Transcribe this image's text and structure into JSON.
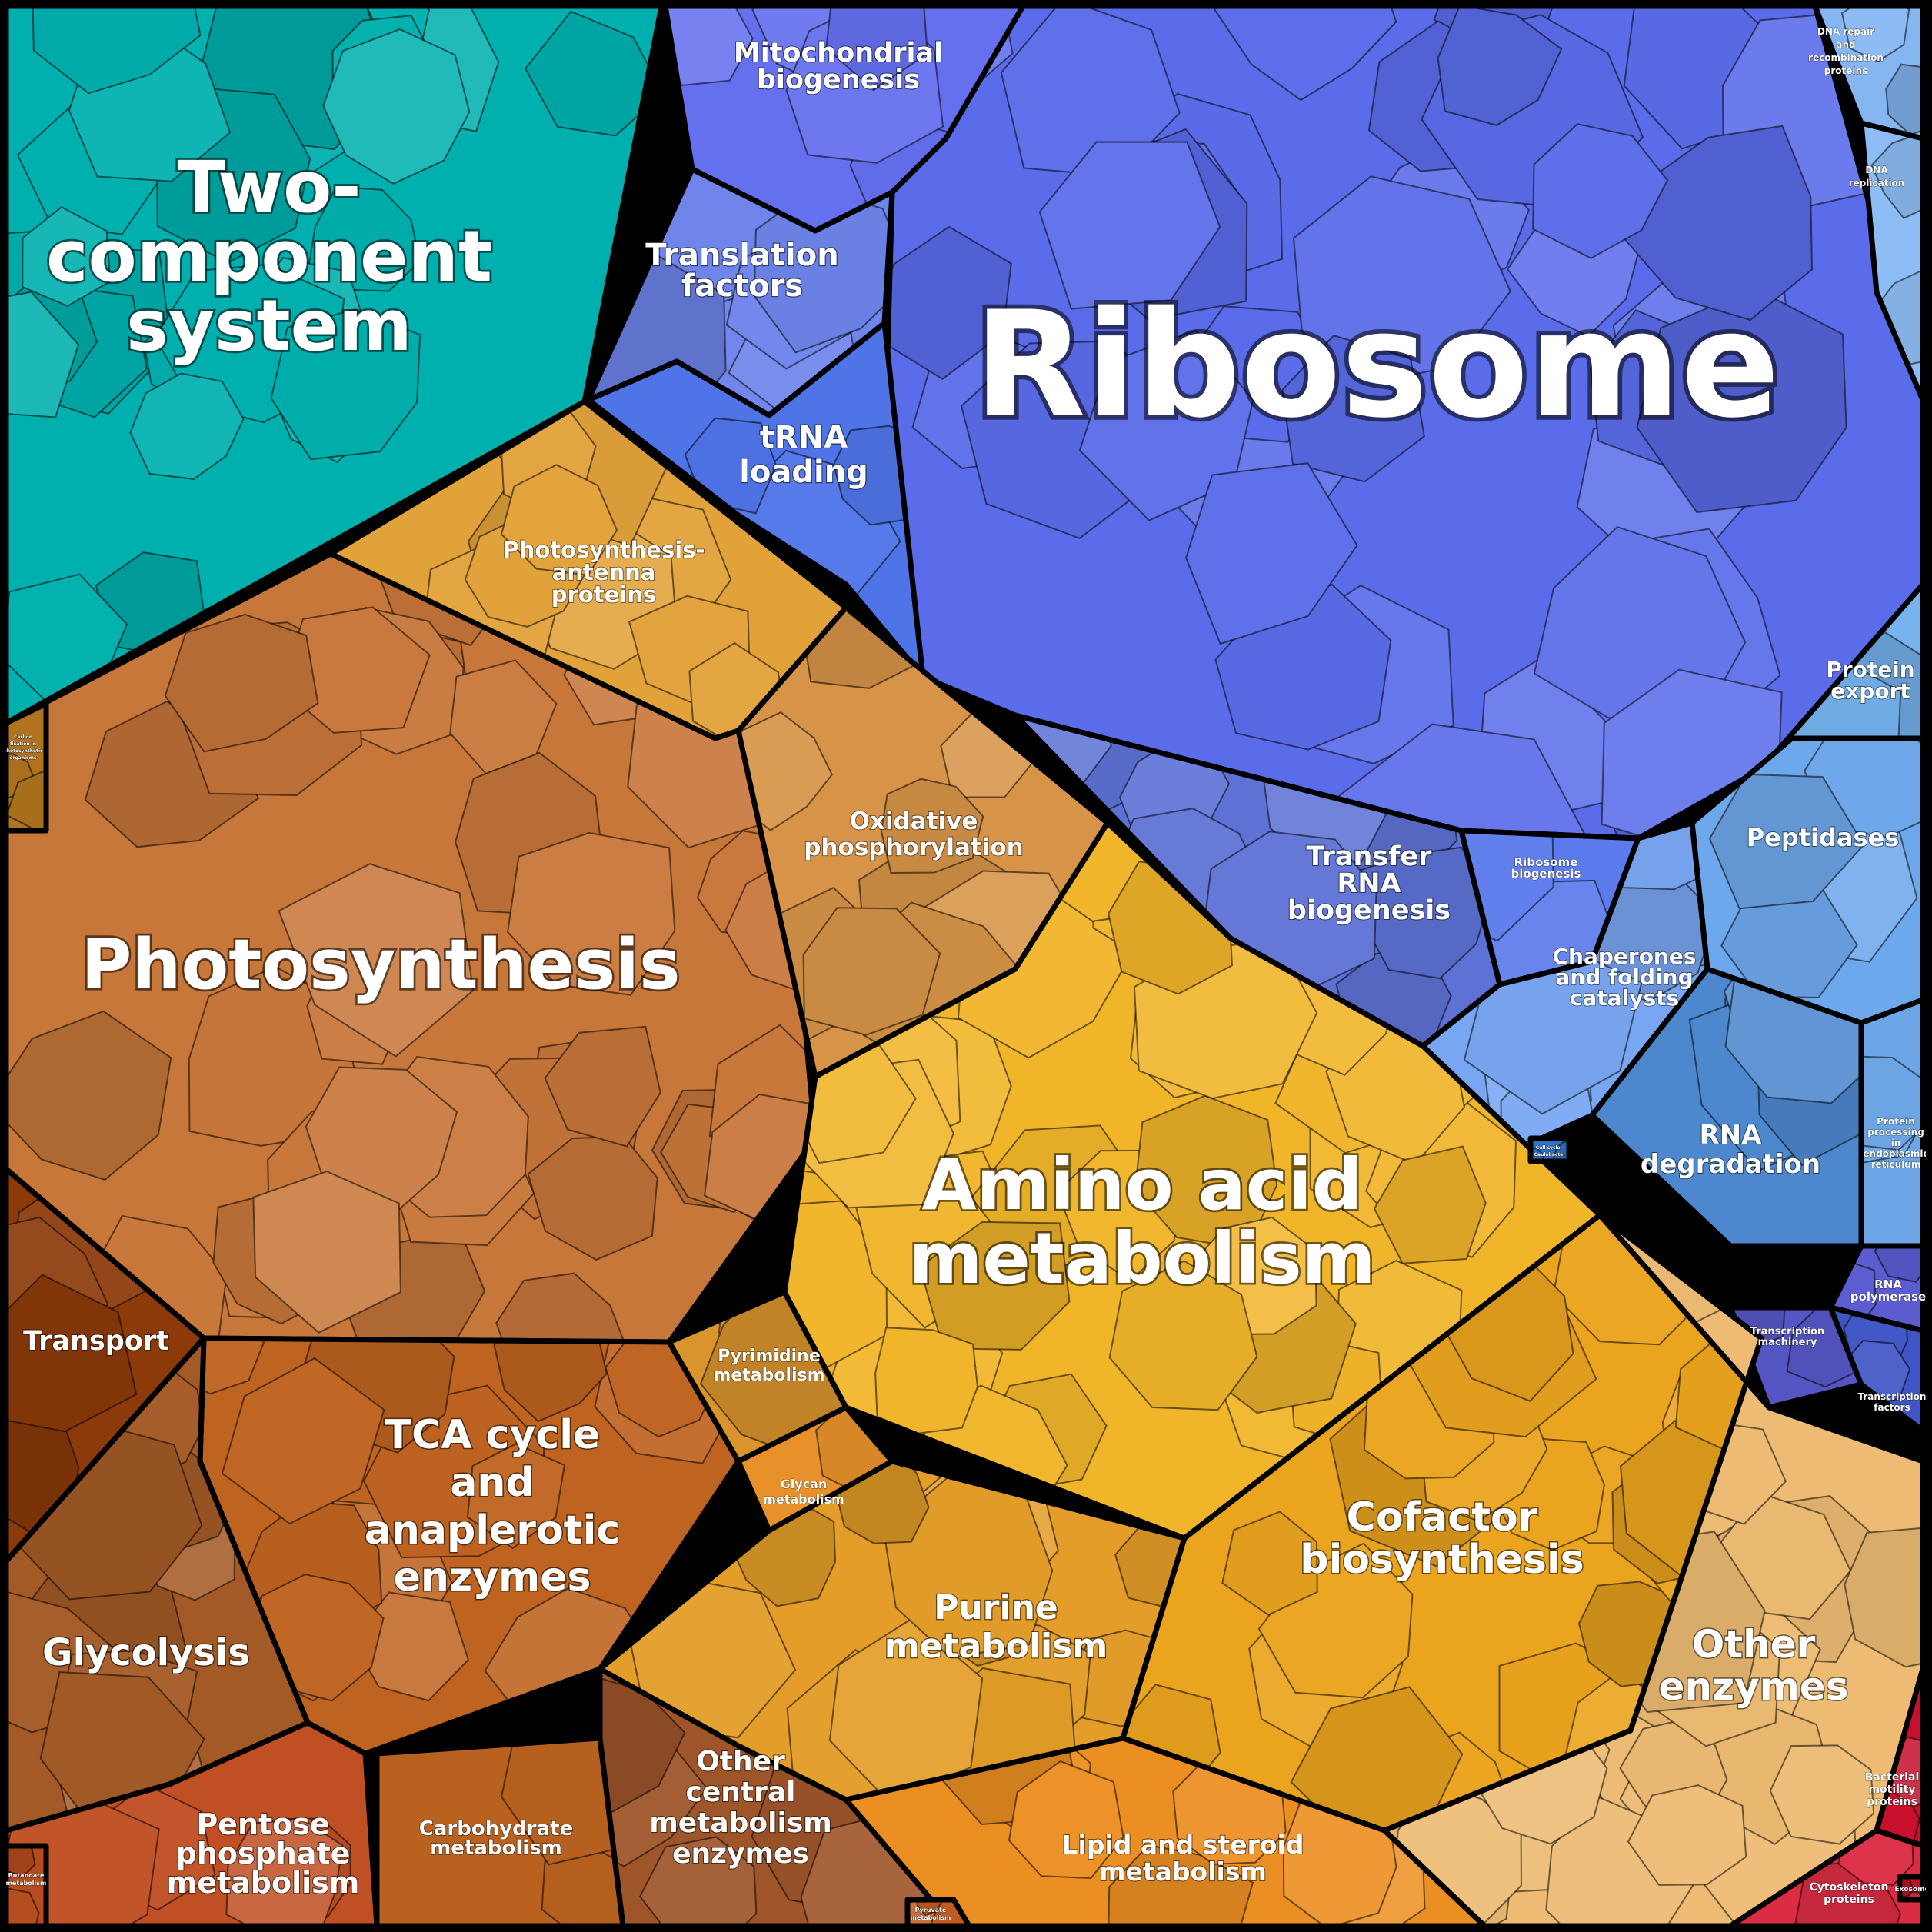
{
  "regions": [
    {
      "key": "two_component",
      "label_lines": [
        "Two-",
        "component",
        "system"
      ],
      "color": "#00B0AE"
    },
    {
      "key": "ribosome",
      "label_lines": [
        "Ribosome"
      ],
      "color": "#5A6CEA"
    },
    {
      "key": "mitochondrial",
      "label_lines": [
        "Mitochondrial",
        "biogenesis"
      ],
      "color": "#6470EE"
    },
    {
      "key": "translation_factors",
      "label_lines": [
        "Translation",
        "factors"
      ],
      "color": "#6F85EC"
    },
    {
      "key": "trna_loading",
      "label_lines": [
        "tRNA",
        "loading"
      ],
      "color": "#4F74E8"
    },
    {
      "key": "dna_repair",
      "label_lines": [
        "DNA repair",
        "and",
        "recombination",
        "proteins"
      ],
      "color": "#86B6F2"
    },
    {
      "key": "dna_replication",
      "label_lines": [
        "DNA",
        "replication"
      ],
      "color": "#8DBDF4"
    },
    {
      "key": "protein_export",
      "label_lines": [
        "Protein",
        "export"
      ],
      "color": "#76B3EF"
    },
    {
      "key": "peptidases",
      "label_lines": [
        "Peptidases"
      ],
      "color": "#6EA8EC"
    },
    {
      "key": "transfer_rna",
      "label_lines": [
        "Transfer",
        "RNA",
        "biogenesis"
      ],
      "color": "#5E72D6"
    },
    {
      "key": "ribosome_biogenesis",
      "label_lines": [
        "Ribosome",
        "biogenesis"
      ],
      "color": "#5B7BEC"
    },
    {
      "key": "chaperones",
      "label_lines": [
        "Chaperones",
        "and folding",
        "catalysts"
      ],
      "color": "#79A6F2"
    },
    {
      "key": "rna_degradation",
      "label_lines": [
        "RNA",
        "degradation"
      ],
      "color": "#4D88CF"
    },
    {
      "key": "protein_processing",
      "label_lines": [
        "Protein",
        "processing",
        "in",
        "endoplasmic",
        "reticulum"
      ],
      "color": "#6DA6E6"
    },
    {
      "key": "rna_polymerase",
      "label_lines": [
        "RNA",
        "polymerase"
      ],
      "color": "#5A5CD0"
    },
    {
      "key": "transcription_machinery",
      "label_lines": [
        "Transcription",
        "machinery"
      ],
      "color": "#5655C4"
    },
    {
      "key": "transcription_factors",
      "label_lines": [
        "Transcription",
        "factors"
      ],
      "color": "#3F55C6"
    },
    {
      "key": "photosynthesis",
      "label_lines": [
        "Photosynthesis"
      ],
      "color": "#C8773A"
    },
    {
      "key": "antenna",
      "label_lines": [
        "Photosynthesis-",
        "antenna",
        "proteins"
      ],
      "color": "#E2A23A"
    },
    {
      "key": "oxphos",
      "label_lines": [
        "Oxidative",
        "phosphorylation"
      ],
      "color": "#D79448"
    },
    {
      "key": "amino_acid",
      "label_lines": [
        "Amino acid",
        "metabolism"
      ],
      "color": "#F1B52A"
    },
    {
      "key": "transport",
      "label_lines": [
        "Transport"
      ],
      "color": "#8C3A0A"
    },
    {
      "key": "tca",
      "label_lines": [
        "TCA cycle",
        "and",
        "anaplerotic",
        "enzymes"
      ],
      "color": "#BE6320"
    },
    {
      "key": "pyrimidine",
      "label_lines": [
        "Pyrimidine",
        "metabolism"
      ],
      "color": "#DA942C"
    },
    {
      "key": "glycan",
      "label_lines": [
        "Glycan",
        "metabolism"
      ],
      "color": "#E8912B"
    },
    {
      "key": "glycolysis",
      "label_lines": [
        "Glycolysis"
      ],
      "color": "#A45A26"
    },
    {
      "key": "purine",
      "label_lines": [
        "Purine",
        "metabolism"
      ],
      "color": "#E39D28"
    },
    {
      "key": "cofactor",
      "label_lines": [
        "Cofactor",
        "biosynthesis"
      ],
      "color": "#EBA41E"
    },
    {
      "key": "other_enzymes",
      "label_lines": [
        "Other",
        "enzymes"
      ],
      "color": "#EDBB73"
    },
    {
      "key": "pentose",
      "label_lines": [
        "Pentose",
        "phosphate",
        "metabolism"
      ],
      "color": "#C04F24"
    },
    {
      "key": "carbohydrate",
      "label_lines": [
        "Carbohydrate",
        "metabolism"
      ],
      "color": "#B9621F"
    },
    {
      "key": "other_central",
      "label_lines": [
        "Other",
        "central",
        "metabolism",
        "enzymes"
      ],
      "color": "#9E552A"
    },
    {
      "key": "lipid",
      "label_lines": [
        "Lipid and steroid",
        "metabolism"
      ],
      "color": "#EC8F22"
    },
    {
      "key": "bacterial_motility",
      "label_lines": [
        "Bacterial",
        "motility",
        "proteins"
      ],
      "color": "#C8102E"
    },
    {
      "key": "cytoskeleton",
      "label_lines": [
        "Cytoskeleton",
        "proteins"
      ],
      "color": "#DC2C44"
    },
    {
      "key": "exosome",
      "label_lines": [
        "Exosome"
      ],
      "color": "#B8142A"
    },
    {
      "key": "butanoate",
      "label_lines": [
        "Butanoate",
        "metabolism"
      ],
      "color": "#B54B1E"
    },
    {
      "key": "pyruvate",
      "label_lines": [
        "Pyruvate",
        "metabolism"
      ],
      "color": "#C15B1E"
    },
    {
      "key": "carbon_fixation",
      "label_lines": [
        "Carbon",
        "fixation in",
        "photosynthetic",
        "organisms"
      ],
      "color": "#B0741E"
    },
    {
      "key": "cell_cycle",
      "label_lines": [
        "Cell cycle -",
        "Caulobacter"
      ],
      "color": "#2E72C8"
    }
  ]
}
